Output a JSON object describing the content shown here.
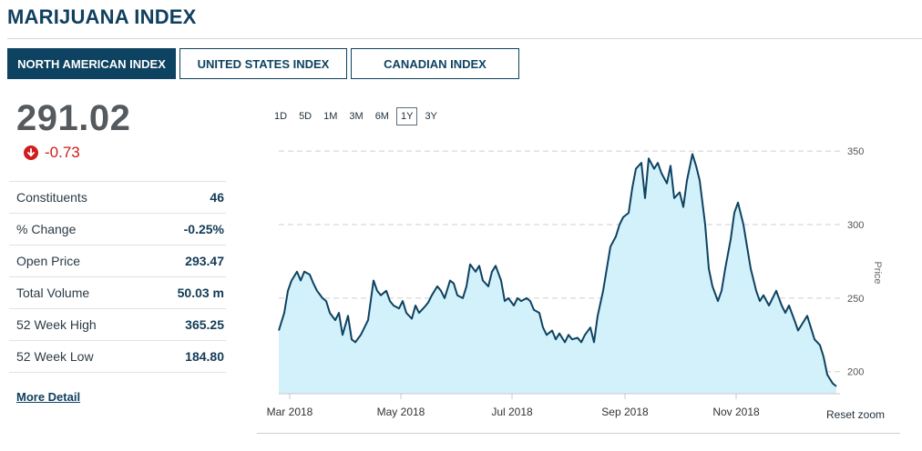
{
  "page": {
    "title": "MARIJUANA INDEX"
  },
  "tabs": [
    {
      "label": "NORTH AMERICAN INDEX",
      "active": true
    },
    {
      "label": "UNITED STATES INDEX",
      "active": false
    },
    {
      "label": "CANADIAN INDEX",
      "active": false
    }
  ],
  "quote": {
    "price": "291.02",
    "change": "-0.73",
    "direction_icon": "arrow-down-circle-icon",
    "change_color": "#d01c1c"
  },
  "stats": [
    {
      "label": "Constituents",
      "value": "46"
    },
    {
      "label": "% Change",
      "value": "-0.25%"
    },
    {
      "label": "Open Price",
      "value": "293.47"
    },
    {
      "label": "Total Volume",
      "value": "50.03 m"
    },
    {
      "label": "52 Week High",
      "value": "365.25"
    },
    {
      "label": "52 Week Low",
      "value": "184.80"
    }
  ],
  "more_detail": "More Detail",
  "ranges": [
    {
      "label": "1D",
      "active": false
    },
    {
      "label": "5D",
      "active": false
    },
    {
      "label": "1M",
      "active": false
    },
    {
      "label": "3M",
      "active": false
    },
    {
      "label": "6M",
      "active": false
    },
    {
      "label": "1Y",
      "active": true
    },
    {
      "label": "3Y",
      "active": false
    }
  ],
  "reset_zoom": "Reset zoom",
  "chart_data": {
    "type": "area",
    "ylabel": "Price",
    "yticks": [
      200,
      250,
      300,
      350
    ],
    "ylim": [
      185,
      360
    ],
    "xlim": [
      "2018-02-23",
      "2018-12-28"
    ],
    "xticks": [
      {
        "date": "2018-03-01",
        "label": "Mar 2018"
      },
      {
        "date": "2018-05-01",
        "label": "May 2018"
      },
      {
        "date": "2018-07-01",
        "label": "Jul 2018"
      },
      {
        "date": "2018-09-01",
        "label": "Sep 2018"
      },
      {
        "date": "2018-11-01",
        "label": "Nov 2018"
      }
    ],
    "grid": true,
    "line_color": "#0d4261",
    "fill_color": "#d3f1fb",
    "series": [
      {
        "points": [
          [
            "2018-02-23",
            228
          ],
          [
            "2018-02-26",
            240
          ],
          [
            "2018-02-28",
            255
          ],
          [
            "2018-03-02",
            262
          ],
          [
            "2018-03-05",
            268
          ],
          [
            "2018-03-07",
            262
          ],
          [
            "2018-03-09",
            268
          ],
          [
            "2018-03-12",
            266
          ],
          [
            "2018-03-14",
            260
          ],
          [
            "2018-03-16",
            255
          ],
          [
            "2018-03-19",
            250
          ],
          [
            "2018-03-21",
            248
          ],
          [
            "2018-03-23",
            240
          ],
          [
            "2018-03-26",
            235
          ],
          [
            "2018-03-28",
            240
          ],
          [
            "2018-03-30",
            225
          ],
          [
            "2018-04-02",
            238
          ],
          [
            "2018-04-04",
            222
          ],
          [
            "2018-04-06",
            220
          ],
          [
            "2018-04-09",
            225
          ],
          [
            "2018-04-11",
            230
          ],
          [
            "2018-04-13",
            235
          ],
          [
            "2018-04-16",
            262
          ],
          [
            "2018-04-18",
            255
          ],
          [
            "2018-04-20",
            252
          ],
          [
            "2018-04-23",
            255
          ],
          [
            "2018-04-25",
            248
          ],
          [
            "2018-04-27",
            245
          ],
          [
            "2018-04-30",
            243
          ],
          [
            "2018-05-02",
            248
          ],
          [
            "2018-05-04",
            240
          ],
          [
            "2018-05-07",
            236
          ],
          [
            "2018-05-09",
            245
          ],
          [
            "2018-05-11",
            240
          ],
          [
            "2018-05-14",
            244
          ],
          [
            "2018-05-16",
            247
          ],
          [
            "2018-05-18",
            252
          ],
          [
            "2018-05-21",
            258
          ],
          [
            "2018-05-23",
            255
          ],
          [
            "2018-05-25",
            250
          ],
          [
            "2018-05-28",
            262
          ],
          [
            "2018-05-30",
            260
          ],
          [
            "2018-06-01",
            252
          ],
          [
            "2018-06-04",
            250
          ],
          [
            "2018-06-06",
            258
          ],
          [
            "2018-06-08",
            273
          ],
          [
            "2018-06-11",
            268
          ],
          [
            "2018-06-13",
            272
          ],
          [
            "2018-06-15",
            262
          ],
          [
            "2018-06-18",
            258
          ],
          [
            "2018-06-20",
            268
          ],
          [
            "2018-06-22",
            272
          ],
          [
            "2018-06-25",
            262
          ],
          [
            "2018-06-27",
            248
          ],
          [
            "2018-06-29",
            250
          ],
          [
            "2018-07-02",
            245
          ],
          [
            "2018-07-04",
            250
          ],
          [
            "2018-07-06",
            248
          ],
          [
            "2018-07-09",
            250
          ],
          [
            "2018-07-11",
            248
          ],
          [
            "2018-07-13",
            242
          ],
          [
            "2018-07-16",
            240
          ],
          [
            "2018-07-18",
            230
          ],
          [
            "2018-07-20",
            225
          ],
          [
            "2018-07-23",
            228
          ],
          [
            "2018-07-25",
            222
          ],
          [
            "2018-07-27",
            226
          ],
          [
            "2018-07-30",
            220
          ],
          [
            "2018-08-01",
            225
          ],
          [
            "2018-08-03",
            222
          ],
          [
            "2018-08-06",
            223
          ],
          [
            "2018-08-08",
            220
          ],
          [
            "2018-08-10",
            225
          ],
          [
            "2018-08-13",
            230
          ],
          [
            "2018-08-15",
            220
          ],
          [
            "2018-08-17",
            238
          ],
          [
            "2018-08-20",
            255
          ],
          [
            "2018-08-22",
            270
          ],
          [
            "2018-08-24",
            285
          ],
          [
            "2018-08-27",
            292
          ],
          [
            "2018-08-29",
            300
          ],
          [
            "2018-08-31",
            305
          ],
          [
            "2018-09-03",
            308
          ],
          [
            "2018-09-05",
            325
          ],
          [
            "2018-09-07",
            338
          ],
          [
            "2018-09-10",
            342
          ],
          [
            "2018-09-12",
            318
          ],
          [
            "2018-09-14",
            345
          ],
          [
            "2018-09-17",
            338
          ],
          [
            "2018-09-19",
            342
          ],
          [
            "2018-09-21",
            335
          ],
          [
            "2018-09-24",
            328
          ],
          [
            "2018-09-26",
            340
          ],
          [
            "2018-09-28",
            318
          ],
          [
            "2018-10-01",
            322
          ],
          [
            "2018-10-03",
            312
          ],
          [
            "2018-10-05",
            330
          ],
          [
            "2018-10-08",
            348
          ],
          [
            "2018-10-10",
            340
          ],
          [
            "2018-10-12",
            330
          ],
          [
            "2018-10-15",
            300
          ],
          [
            "2018-10-17",
            270
          ],
          [
            "2018-10-19",
            258
          ],
          [
            "2018-10-22",
            248
          ],
          [
            "2018-10-24",
            255
          ],
          [
            "2018-10-26",
            270
          ],
          [
            "2018-10-29",
            290
          ],
          [
            "2018-10-31",
            308
          ],
          [
            "2018-11-02",
            315
          ],
          [
            "2018-11-05",
            300
          ],
          [
            "2018-11-07",
            285
          ],
          [
            "2018-11-09",
            270
          ],
          [
            "2018-11-12",
            255
          ],
          [
            "2018-11-14",
            248
          ],
          [
            "2018-11-16",
            252
          ],
          [
            "2018-11-19",
            245
          ],
          [
            "2018-11-21",
            250
          ],
          [
            "2018-11-23",
            255
          ],
          [
            "2018-11-26",
            245
          ],
          [
            "2018-11-28",
            240
          ],
          [
            "2018-11-30",
            245
          ],
          [
            "2018-12-03",
            235
          ],
          [
            "2018-12-05",
            228
          ],
          [
            "2018-12-07",
            232
          ],
          [
            "2018-12-10",
            238
          ],
          [
            "2018-12-12",
            230
          ],
          [
            "2018-12-14",
            222
          ],
          [
            "2018-12-17",
            218
          ],
          [
            "2018-12-19",
            210
          ],
          [
            "2018-12-21",
            198
          ],
          [
            "2018-12-24",
            192
          ],
          [
            "2018-12-26",
            190
          ]
        ]
      }
    ]
  }
}
